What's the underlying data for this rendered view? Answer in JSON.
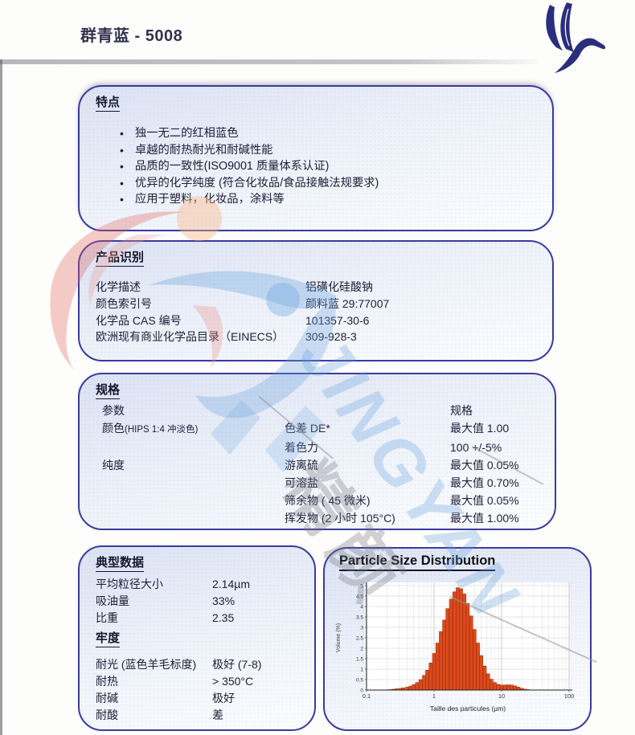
{
  "page": {
    "title": "群青蓝 - 5008"
  },
  "logo": {
    "name": "flying-bird-logo",
    "color": "#2b2d7d"
  },
  "colors": {
    "panel_border": "#3a3aa0",
    "panel_fill_top": "#dbe2f2",
    "text": "#20203a",
    "bar_fill": "#dd4a1c",
    "bar_edge": "#952708"
  },
  "features": {
    "heading": "特点",
    "items": [
      "独一无二的红相蓝色",
      "卓越的耐热耐光和耐碱性能",
      "品质的一致性(ISO9001 质量体系认证)",
      "优异的化学纯度 (符合化妆品/食品接触法规要求)",
      "应用于塑料，化妆品，涂料等"
    ]
  },
  "identification": {
    "heading": "产品识别",
    "rows": [
      {
        "label": "化学描述",
        "value": "铝磺化硅酸钠"
      },
      {
        "label": "颜色索引号",
        "value": "颜料蓝 29:77007"
      },
      {
        "label": "化学品 CAS 编号",
        "value": "101357-30-6"
      },
      {
        "label": "欧洲现有商业化学品目录（EINECS）",
        "value": "309-928-3"
      }
    ]
  },
  "specs": {
    "heading": "规格",
    "param_header": "参数",
    "spec_header": "规格",
    "rows": [
      {
        "param": "颜色",
        "param_note": "(HIPS 1:4 冲淡色)",
        "item": "色差 DE*",
        "value": "最大值 1.00"
      },
      {
        "param": "",
        "param_note": "",
        "item": "着色力",
        "value": "100 +/-5%"
      },
      {
        "param": "纯度",
        "param_note": "",
        "item": "游离硫",
        "value": "最大值 0.05%"
      },
      {
        "param": "",
        "param_note": "",
        "item": "可溶盐",
        "value": "最大值 0.70%"
      },
      {
        "param": "",
        "param_note": "",
        "item": "筛余物 ( 45 微米)",
        "value": "最大值 0.05%"
      },
      {
        "param": "",
        "param_note": "",
        "item": "挥发物 (2 小时 105°C)",
        "value": "最大值 1.00%"
      }
    ]
  },
  "typical": {
    "heading": "典型数据",
    "rows": [
      {
        "label": "平均粒径大小",
        "value": "2.14µm"
      },
      {
        "label": "吸油量",
        "value": "33%"
      },
      {
        "label": "比重",
        "value": "2.35"
      }
    ],
    "fastness_heading": "牢度",
    "fastness_rows": [
      {
        "label": "耐光 (蓝色羊毛标度)",
        "value": "极好 (7-8)"
      },
      {
        "label": "耐热",
        "value": "> 350°C"
      },
      {
        "label": "耐碱",
        "value": "极好"
      },
      {
        "label": "耐酸",
        "value": "差"
      }
    ]
  },
  "chart_data": {
    "type": "bar",
    "title": "Particle Size Distribution",
    "xlabel": "Taille des particules (µm)",
    "ylabel": "Volume (%)",
    "x_scale": "log",
    "xlim": [
      0.1,
      100
    ],
    "ylim": [
      0,
      5
    ],
    "x_ticks": [
      0.1,
      1,
      10,
      100
    ],
    "y_ticks": [
      0,
      0.5,
      1,
      1.5,
      2,
      2.5,
      3,
      3.5,
      4,
      4.5,
      5
    ],
    "grid": true,
    "bar_color": "#dd4a1c",
    "bar_edge_color": "#952708",
    "x": [
      0.22,
      0.25,
      0.28,
      0.32,
      0.35,
      0.4,
      0.45,
      0.5,
      0.56,
      0.63,
      0.71,
      0.79,
      0.89,
      1.0,
      1.12,
      1.26,
      1.41,
      1.58,
      1.78,
      2.0,
      2.24,
      2.51,
      2.82,
      3.16,
      3.55,
      3.98,
      4.47,
      5.01,
      5.62,
      6.31,
      7.08,
      7.94,
      8.91,
      10.0,
      11.2,
      12.6,
      14.1,
      15.8,
      17.8,
      20.0,
      22.4,
      25.1
    ],
    "values": [
      0.02,
      0.04,
      0.06,
      0.08,
      0.1,
      0.14,
      0.19,
      0.26,
      0.36,
      0.5,
      0.7,
      0.95,
      1.3,
      1.75,
      2.25,
      2.8,
      3.35,
      3.9,
      4.35,
      4.7,
      4.9,
      4.85,
      4.6,
      4.15,
      3.55,
      2.9,
      2.25,
      1.65,
      1.15,
      0.78,
      0.52,
      0.36,
      0.27,
      0.24,
      0.24,
      0.25,
      0.24,
      0.2,
      0.14,
      0.08,
      0.04,
      0.02
    ]
  },
  "watermark": {
    "text_en": "JINGYAN",
    "text_cn": "精颜"
  }
}
